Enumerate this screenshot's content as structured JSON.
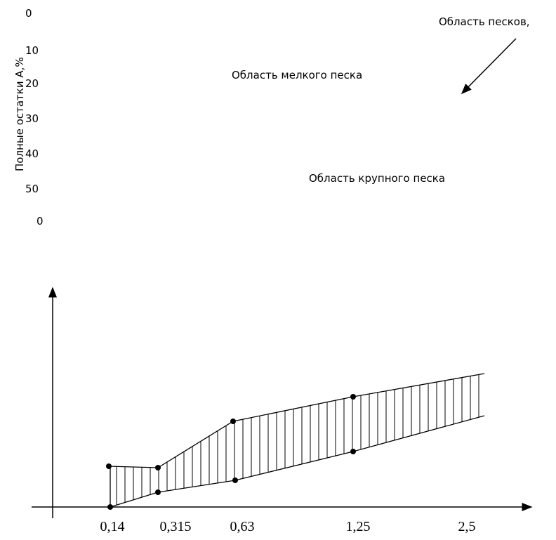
{
  "y_axis": {
    "label": "Полные остатки А,%",
    "numbers": [
      "0",
      "10",
      "20",
      "30",
      "40",
      "50",
      "0"
    ]
  },
  "annotations": {
    "sands_area": "Область песков,",
    "fine_sand": "Область мелкого песка",
    "coarse_sand": "Область крупного песка"
  },
  "x_axis": {
    "labels": [
      "0,14",
      "0,315",
      "0,63",
      "1,25",
      "2,5"
    ]
  }
}
